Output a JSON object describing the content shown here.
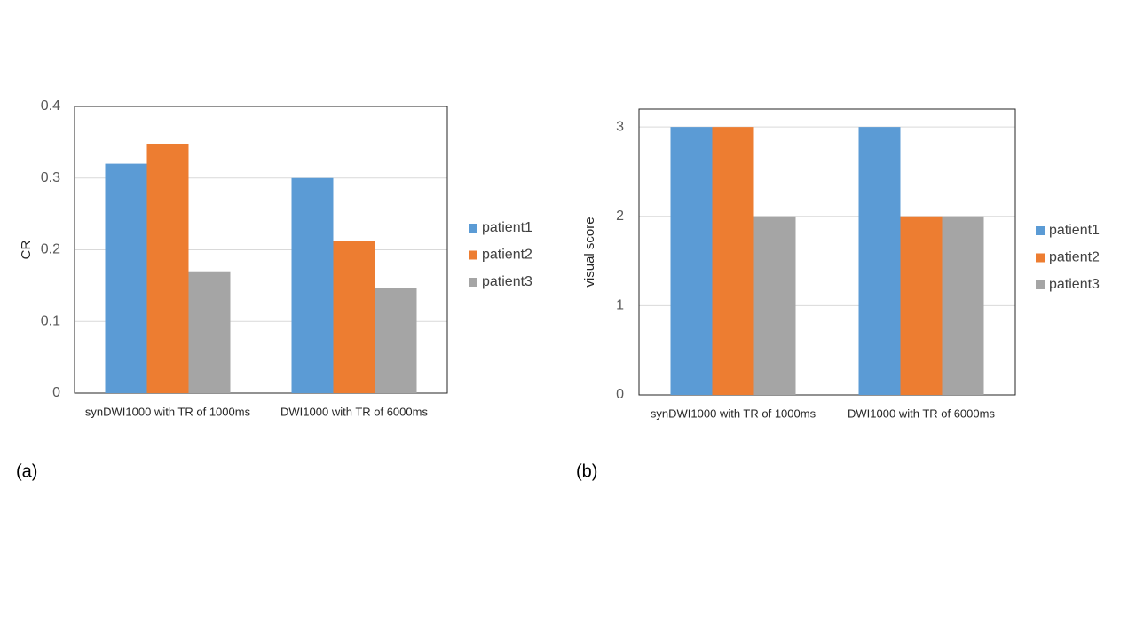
{
  "chart_data": [
    {
      "type": "bar",
      "panel_label": "(a)",
      "y_label": "CR",
      "categories": [
        "synDWI1000 with TR of 1000ms",
        "DWI1000 with TR of 6000ms"
      ],
      "series": [
        {
          "name": "patient1",
          "color": "#5b9bd5",
          "values": [
            0.32,
            0.3
          ]
        },
        {
          "name": "patient2",
          "color": "#ed7d31",
          "values": [
            0.348,
            0.212
          ]
        },
        {
          "name": "patient3",
          "color": "#a5a5a5",
          "values": [
            0.17,
            0.147
          ]
        }
      ],
      "ylim": [
        0,
        0.4
      ],
      "yticks": [
        0,
        0.1,
        0.2,
        0.3,
        0.4
      ],
      "grid": true,
      "legend": "right"
    },
    {
      "type": "bar",
      "panel_label": "(b)",
      "y_label": "visual score",
      "categories": [
        "synDWI1000 with TR of 1000ms",
        "DWI1000 with TR of 6000ms"
      ],
      "series": [
        {
          "name": "patient1",
          "color": "#5b9bd5",
          "values": [
            3,
            3
          ]
        },
        {
          "name": "patient2",
          "color": "#ed7d31",
          "values": [
            3,
            2
          ]
        },
        {
          "name": "patient3",
          "color": "#a5a5a5",
          "values": [
            2,
            2
          ]
        }
      ],
      "ylim": [
        0,
        3.2
      ],
      "yticks": [
        0,
        1,
        2,
        3
      ],
      "grid": true,
      "legend": "right"
    }
  ]
}
